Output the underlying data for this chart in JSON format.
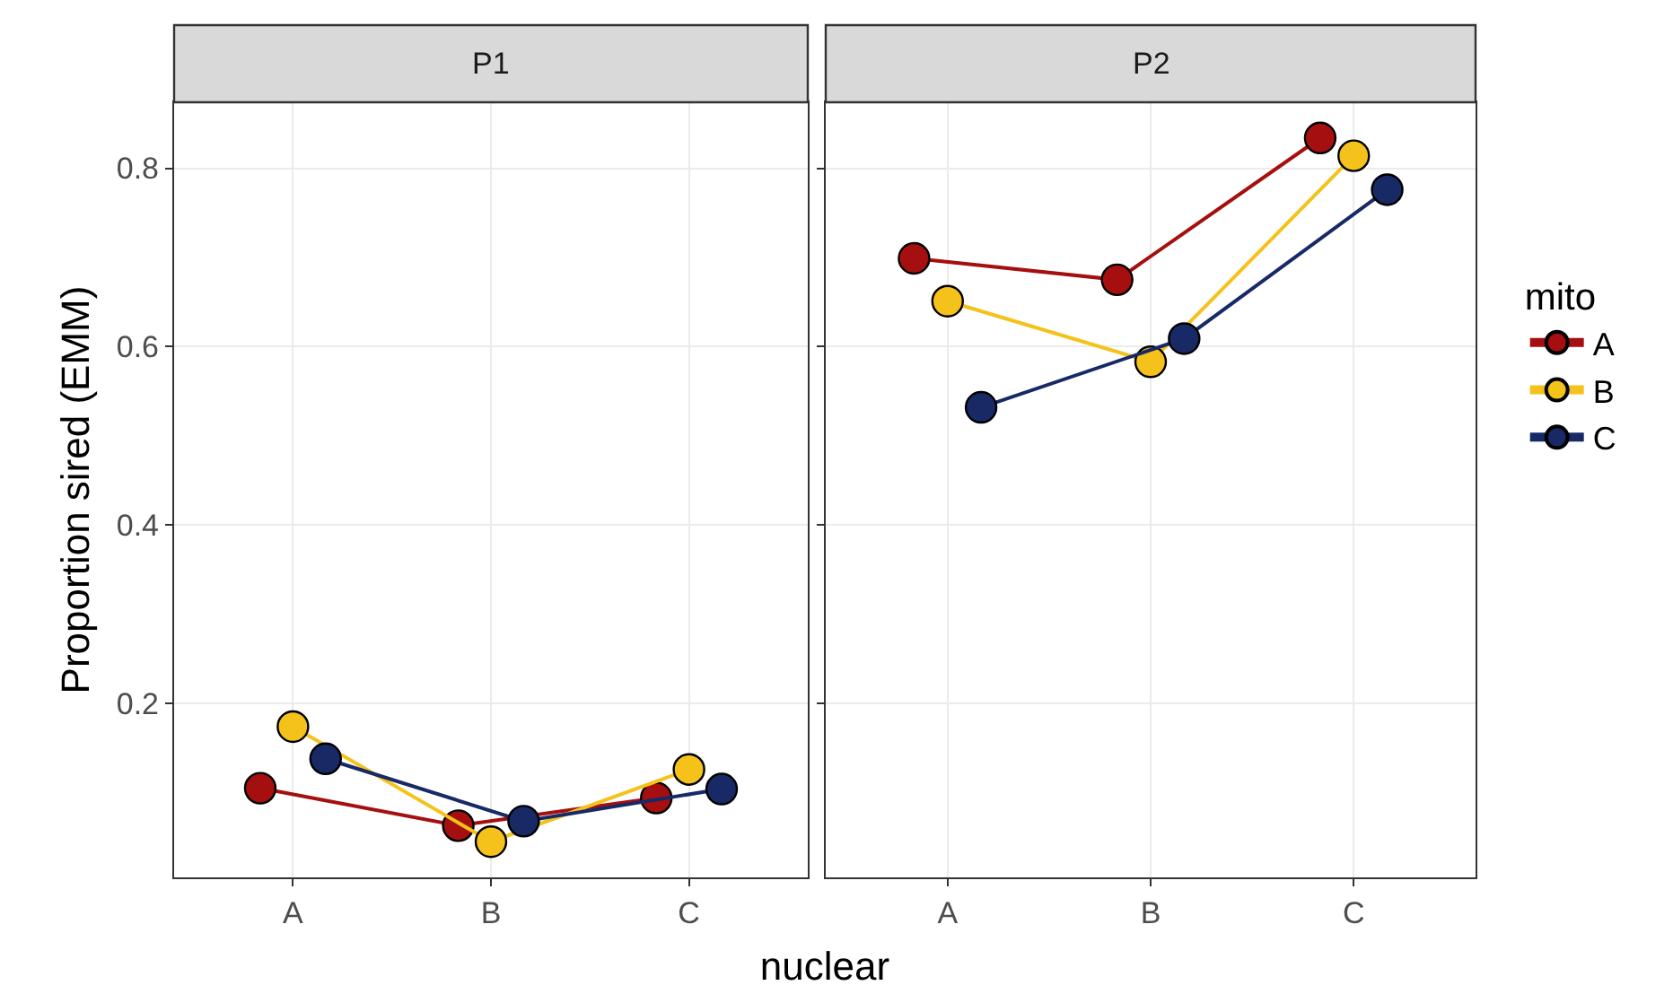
{
  "chart_data": [
    {
      "type": "line",
      "title": "P1",
      "ylabel": "Proportion sired (EMM)",
      "xlabel": "nuclear",
      "categories": [
        "A",
        "B",
        "C"
      ],
      "series": [
        {
          "color": "#a50f0f",
          "values": [
            0.105,
            0.063,
            0.094
          ]
        },
        {
          "color": "#f5c21b",
          "values": [
            0.174,
            0.045,
            0.126
          ]
        },
        {
          "color": "#172a66",
          "values": [
            0.138,
            0.068,
            0.104
          ]
        }
      ],
      "ylim": [
        0.005,
        0.874
      ],
      "yticks": [
        0.2,
        0.4,
        0.6,
        0.8
      ],
      "grid": true,
      "marker": "circle",
      "line_style": "solid",
      "legend": false
    },
    {
      "type": "line",
      "title": "P2",
      "legend_title": "mito",
      "categories": [
        "A",
        "B",
        "C"
      ],
      "series": [
        {
          "name": "A",
          "color": "#a50f0f",
          "values": [
            0.699,
            0.675,
            0.834
          ]
        },
        {
          "name": "B",
          "color": "#f5c21b",
          "values": [
            0.651,
            0.583,
            0.814
          ]
        },
        {
          "name": "C",
          "color": "#172a66",
          "values": [
            0.532,
            0.609,
            0.776
          ]
        }
      ],
      "ylim": [
        0.005,
        0.874
      ],
      "yticks": [
        0.2,
        0.4,
        0.6,
        0.8
      ],
      "grid": true,
      "marker": "circle",
      "line_style": "solid",
      "legend": "right",
      "tick_labels": "x"
    }
  ]
}
